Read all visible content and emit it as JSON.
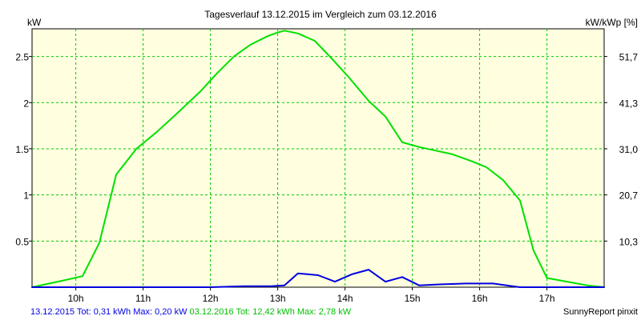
{
  "chart_data": {
    "type": "line",
    "title": "Tagesverlauf 13.12.2015 im Vergleich zum 03.12.2016",
    "ylabel": "kW",
    "ylabel_right": "kW/kWp [%]",
    "xlabel": "",
    "xlim": [
      9.35,
      17.85
    ],
    "ylim": [
      0,
      2.8
    ],
    "grid": true,
    "x_ticks": [
      10,
      11,
      12,
      13,
      14,
      15,
      16,
      17
    ],
    "x_tick_labels": [
      "10h",
      "11h",
      "12h",
      "13h",
      "14h",
      "15h",
      "16h",
      "17h"
    ],
    "y_ticks": [
      0.5,
      1,
      1.5,
      2,
      2.5
    ],
    "y_tick_labels": [
      "0.5",
      "1",
      "1.5",
      "2",
      "2.5"
    ],
    "y_right_tick_labels": [
      "10,3",
      "20,7",
      "31,0",
      "41,3",
      "51,7"
    ],
    "series": [
      {
        "label": "03.12.2016",
        "color": "#00e000",
        "x": [
          9.35,
          9.8,
          10.1,
          10.35,
          10.6,
          10.9,
          11.2,
          11.5,
          11.85,
          12.1,
          12.35,
          12.6,
          12.85,
          13.0,
          13.1,
          13.3,
          13.55,
          13.8,
          14.05,
          14.35,
          14.6,
          14.85,
          15.1,
          15.35,
          15.6,
          15.9,
          16.1,
          16.35,
          16.6,
          16.8,
          17.0,
          17.3,
          17.6,
          17.85
        ],
        "y": [
          0.0,
          0.07,
          0.12,
          0.48,
          1.22,
          1.5,
          1.68,
          1.88,
          2.12,
          2.32,
          2.5,
          2.63,
          2.72,
          2.76,
          2.78,
          2.75,
          2.67,
          2.48,
          2.28,
          2.02,
          1.85,
          1.57,
          1.52,
          1.48,
          1.44,
          1.36,
          1.3,
          1.16,
          0.94,
          0.4,
          0.1,
          0.06,
          0.02,
          0.0
        ]
      },
      {
        "label": "13.12.2015",
        "color": "#0000e0",
        "x": [
          9.35,
          10.0,
          11.0,
          12.0,
          12.5,
          12.9,
          13.1,
          13.3,
          13.6,
          13.85,
          14.1,
          14.35,
          14.6,
          14.85,
          15.1,
          15.4,
          15.8,
          16.2,
          16.6,
          17.0,
          17.5,
          17.85
        ],
        "y": [
          0.0,
          0.0,
          0.0,
          0.0,
          0.01,
          0.01,
          0.02,
          0.15,
          0.13,
          0.06,
          0.14,
          0.19,
          0.06,
          0.11,
          0.02,
          0.03,
          0.04,
          0.04,
          0.0,
          0.0,
          0.0,
          0.0
        ]
      }
    ]
  },
  "footer": {
    "series_2015_text": "13.12.2015 Tot: 0,31 kWh Max: 0,20 kW",
    "series_2016_text": "03.12.2016 Tot: 12,42 kWh Max: 2,78 kW",
    "credit": "SunnyReport pinxit"
  },
  "colors": {
    "background": "#ffffff",
    "plot_background": "#ffffe0",
    "grid": "#00c800",
    "footer_2015": "#0000e0",
    "footer_2016": "#00c000"
  }
}
